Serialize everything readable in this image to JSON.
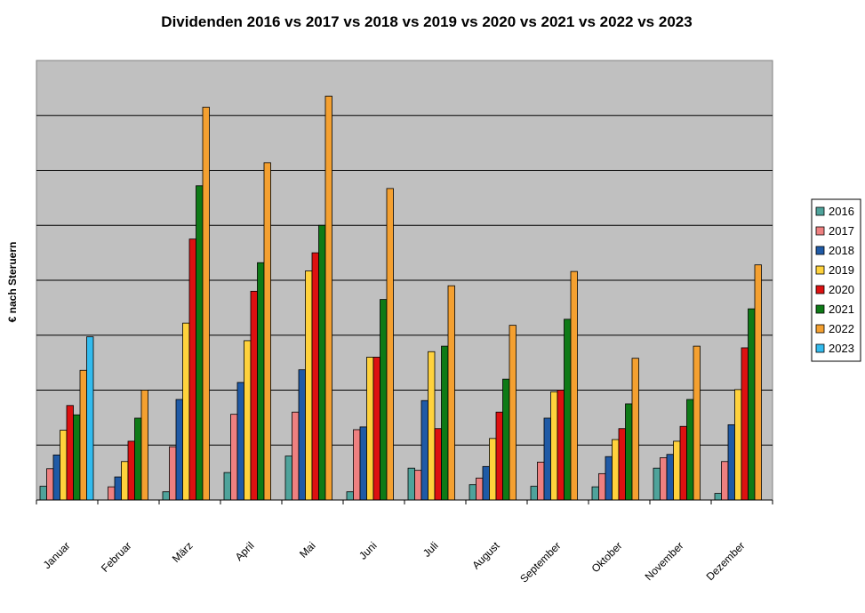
{
  "chart_data": {
    "type": "bar",
    "title": "Dividenden 2016 vs 2017 vs 2018 vs 2019 vs 2020 vs 2021 vs 2022 vs 2023",
    "xlabel": "",
    "ylabel": "€ nach Steruern",
    "ylim": [
      0,
      8
    ],
    "grid": true,
    "legend_position": "right",
    "categories": [
      "Januar",
      "Februar",
      "März",
      "April",
      "Mai",
      "Juni",
      "Juli",
      "August",
      "September",
      "Oktober",
      "November",
      "Dezember"
    ],
    "series": [
      {
        "name": "2016",
        "color": "#4fa39b",
        "values": [
          0.25,
          null,
          0.15,
          0.5,
          0.8,
          0.15,
          0.58,
          0.28,
          0.25,
          0.24,
          0.58,
          0.12
        ]
      },
      {
        "name": "2017",
        "color": "#ee8080",
        "values": [
          0.57,
          0.24,
          0.97,
          1.56,
          1.6,
          1.28,
          0.54,
          0.4,
          0.69,
          0.48,
          0.77,
          0.7
        ]
      },
      {
        "name": "2018",
        "color": "#1f5aa6",
        "values": [
          0.82,
          0.42,
          1.83,
          2.14,
          2.37,
          1.33,
          1.81,
          0.61,
          1.49,
          0.79,
          0.83,
          1.37
        ]
      },
      {
        "name": "2019",
        "color": "#ffd23c",
        "values": [
          1.27,
          0.7,
          3.22,
          2.9,
          4.17,
          2.6,
          2.7,
          1.12,
          1.97,
          1.1,
          1.07,
          2.01
        ]
      },
      {
        "name": "2020",
        "color": "#dd1111",
        "values": [
          1.72,
          1.07,
          4.75,
          3.8,
          4.5,
          2.6,
          1.3,
          1.6,
          2.0,
          1.3,
          1.34,
          2.77
        ]
      },
      {
        "name": "2021",
        "color": "#0e7a16",
        "values": [
          1.55,
          1.49,
          5.72,
          4.32,
          5.0,
          3.65,
          2.8,
          2.2,
          3.29,
          1.75,
          1.83,
          3.48
        ]
      },
      {
        "name": "2022",
        "color": "#f4a030",
        "values": [
          2.36,
          2.0,
          7.15,
          6.14,
          7.35,
          5.67,
          3.9,
          3.18,
          4.16,
          2.58,
          2.8,
          4.28
        ]
      },
      {
        "name": "2023",
        "color": "#33bbee",
        "values": [
          2.97,
          null,
          null,
          null,
          null,
          null,
          null,
          null,
          null,
          null,
          null,
          null
        ]
      }
    ]
  }
}
